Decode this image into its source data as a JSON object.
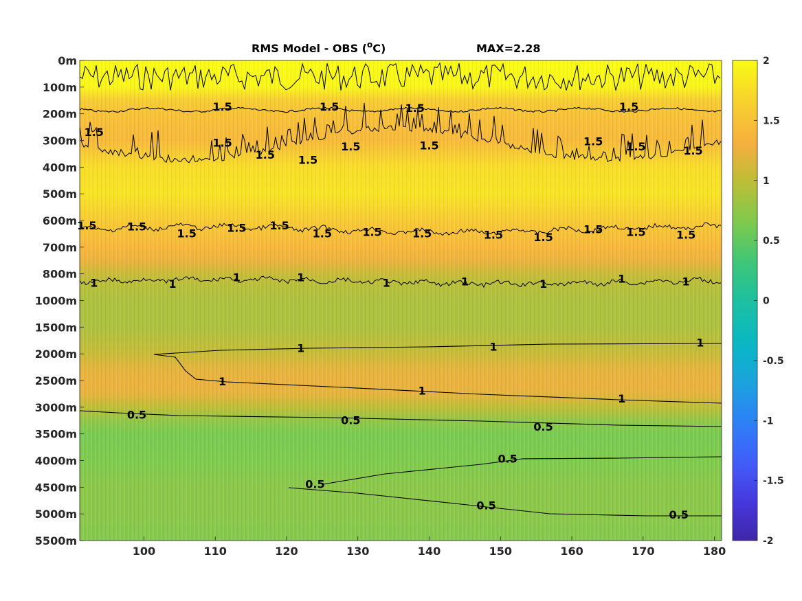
{
  "chart_data": {
    "type": "heatmap",
    "title": "RMS Model - OBS (",
    "title_unit_sup": "o",
    "title_unit_end": "C)",
    "max_text": "MAX=2.28",
    "x": {
      "range": [
        91,
        181
      ],
      "ticks": [
        100,
        110,
        120,
        130,
        140,
        150,
        160,
        170,
        180
      ],
      "tick_labels": [
        "100",
        "110",
        "120",
        "130",
        "140",
        "150",
        "160",
        "170",
        "180"
      ]
    },
    "y": {
      "tick_labels": [
        "0m",
        "100m",
        "200m",
        "300m",
        "400m",
        "500m",
        "600m",
        "700m",
        "800m",
        "1000m",
        "1500m",
        "2000m",
        "2500m",
        "3000m",
        "3500m",
        "4000m",
        "4500m",
        "5000m",
        "5500m"
      ]
    },
    "colorbar": {
      "range": [
        -2,
        2
      ],
      "ticks": [
        2,
        1.5,
        1,
        0.5,
        0,
        -0.5,
        -1,
        -1.5,
        -2
      ],
      "tick_labels": [
        "2",
        "1.5",
        "1",
        "0.5",
        "0",
        "-0.5",
        "-1",
        "-1.5",
        "-2"
      ],
      "colormap": "parula"
    },
    "rms_profile": {
      "depth_index": [
        0,
        1,
        1.5,
        2,
        2.5,
        3,
        3.5,
        4,
        5,
        6,
        6.5,
        7,
        7.5,
        8,
        8.5,
        9,
        10,
        11,
        11.5,
        12,
        12.5,
        13,
        13.5,
        14,
        15,
        16,
        17,
        18
      ],
      "value": [
        2.0,
        1.95,
        1.6,
        1.5,
        1.45,
        1.42,
        1.58,
        1.75,
        1.8,
        1.58,
        1.48,
        1.4,
        1.25,
        1.05,
        0.95,
        0.9,
        0.9,
        1.05,
        1.2,
        1.25,
        1.22,
        1.0,
        0.75,
        0.62,
        0.65,
        0.72,
        0.72,
        0.68
      ]
    },
    "contour_labels": [
      {
        "text": "1.5",
        "x": 111,
        "y": 1.75
      },
      {
        "text": "1.5",
        "x": 126,
        "y": 1.75
      },
      {
        "text": "1.5",
        "x": 138,
        "y": 1.8
      },
      {
        "text": "1.5",
        "x": 168,
        "y": 1.75
      },
      {
        "text": "1.5",
        "x": 93,
        "y": 2.7
      },
      {
        "text": "1.5",
        "x": 111,
        "y": 3.1
      },
      {
        "text": "1.5",
        "x": 117,
        "y": 3.55
      },
      {
        "text": "1.5",
        "x": 123,
        "y": 3.75
      },
      {
        "text": "1.5",
        "x": 129,
        "y": 3.25
      },
      {
        "text": "1.5",
        "x": 140,
        "y": 3.2
      },
      {
        "text": "1.5",
        "x": 163,
        "y": 3.05
      },
      {
        "text": "1.5",
        "x": 169,
        "y": 3.25
      },
      {
        "text": "1.5",
        "x": 177,
        "y": 3.4
      },
      {
        "text": "1.5",
        "x": 92,
        "y": 6.2
      },
      {
        "text": "1.5",
        "x": 99,
        "y": 6.25
      },
      {
        "text": "1.5",
        "x": 106,
        "y": 6.5
      },
      {
        "text": "1.5",
        "x": 113,
        "y": 6.3
      },
      {
        "text": "1.5",
        "x": 119,
        "y": 6.2
      },
      {
        "text": "1.5",
        "x": 125,
        "y": 6.5
      },
      {
        "text": "1.5",
        "x": 132,
        "y": 6.45
      },
      {
        "text": "1.5",
        "x": 139,
        "y": 6.5
      },
      {
        "text": "1.5",
        "x": 149,
        "y": 6.55
      },
      {
        "text": "1.5",
        "x": 156,
        "y": 6.65
      },
      {
        "text": "1.5",
        "x": 163,
        "y": 6.35
      },
      {
        "text": "1.5",
        "x": 169,
        "y": 6.45
      },
      {
        "text": "1.5",
        "x": 176,
        "y": 6.55
      },
      {
        "text": "1",
        "x": 93,
        "y": 8.35
      },
      {
        "text": "1",
        "x": 104,
        "y": 8.4
      },
      {
        "text": "1",
        "x": 113,
        "y": 8.15
      },
      {
        "text": "1",
        "x": 122,
        "y": 8.15
      },
      {
        "text": "1",
        "x": 134,
        "y": 8.35
      },
      {
        "text": "1",
        "x": 145,
        "y": 8.3
      },
      {
        "text": "1",
        "x": 156,
        "y": 8.4
      },
      {
        "text": "1",
        "x": 167,
        "y": 8.2
      },
      {
        "text": "1",
        "x": 176,
        "y": 8.3
      },
      {
        "text": "1",
        "x": 122,
        "y": 10.8
      },
      {
        "text": "1",
        "x": 149,
        "y": 10.75
      },
      {
        "text": "1",
        "x": 178,
        "y": 10.6
      },
      {
        "text": "1",
        "x": 111,
        "y": 12.05
      },
      {
        "text": "1",
        "x": 139,
        "y": 12.4
      },
      {
        "text": "1",
        "x": 167,
        "y": 12.7
      },
      {
        "text": "0.5",
        "x": 99,
        "y": 13.3
      },
      {
        "text": "0.5",
        "x": 129,
        "y": 13.5
      },
      {
        "text": "0.5",
        "x": 156,
        "y": 13.75
      },
      {
        "text": "0.5",
        "x": 151,
        "y": 14.95
      },
      {
        "text": "0.5",
        "x": 124,
        "y": 15.9
      },
      {
        "text": "0.5",
        "x": 148,
        "y": 16.7
      },
      {
        "text": "0.5",
        "x": 175,
        "y": 17.05
      }
    ]
  }
}
